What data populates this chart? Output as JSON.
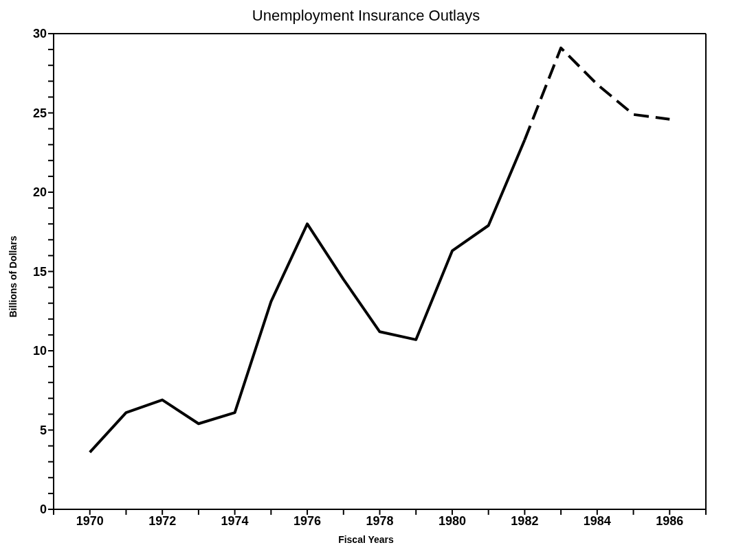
{
  "chart_data": {
    "type": "line",
    "title": "Unemployment Insurance Outlays",
    "xlabel": "Fiscal Years",
    "ylabel": "Billions of Dollars",
    "series": [
      {
        "color": "#000000",
        "line_style": "solid",
        "x": [
          1970,
          1971,
          1972,
          1973,
          1974,
          1975,
          1976,
          1977,
          1978,
          1979,
          1980,
          1981,
          1982
        ],
        "values": [
          3.6,
          6.1,
          6.9,
          5.4,
          6.1,
          13.1,
          18.0,
          14.5,
          11.2,
          10.7,
          16.3,
          17.9,
          23.3
        ]
      },
      {
        "color": "#000000",
        "line_style": "dashed",
        "x": [
          1982,
          1983,
          1984,
          1985,
          1986
        ],
        "values": [
          23.3,
          29.1,
          26.8,
          24.9,
          24.6
        ]
      }
    ],
    "xlim": [
      1969,
      1987
    ],
    "xticks": [
      {
        "value": 1969,
        "label": null
      },
      1970,
      {
        "value": 1971,
        "label": null
      },
      1972,
      {
        "value": 1973,
        "label": null
      },
      1974,
      {
        "value": 1975,
        "label": null
      },
      1976,
      {
        "value": 1977,
        "label": null
      },
      1978,
      {
        "value": 1979,
        "label": null
      },
      1980,
      {
        "value": 1981,
        "label": null
      },
      1982,
      {
        "value": 1983,
        "label": null
      },
      1984,
      {
        "value": 1985,
        "label": null
      },
      1986,
      {
        "value": 1987,
        "label": null
      }
    ],
    "ylim": [
      0,
      30
    ],
    "yticks": [
      0,
      {
        "value": 1,
        "label": null
      },
      {
        "value": 2,
        "label": null
      },
      {
        "value": 3,
        "label": null
      },
      {
        "value": 4,
        "label": null
      },
      5,
      {
        "value": 6,
        "label": null
      },
      {
        "value": 7,
        "label": null
      },
      {
        "value": 8,
        "label": null
      },
      {
        "value": 9,
        "label": null
      },
      10,
      {
        "value": 11,
        "label": null
      },
      {
        "value": 12,
        "label": null
      },
      {
        "value": 13,
        "label": null
      },
      {
        "value": 14,
        "label": null
      },
      15,
      {
        "value": 16,
        "label": null
      },
      {
        "value": 17,
        "label": null
      },
      {
        "value": 18,
        "label": null
      },
      {
        "value": 19,
        "label": null
      },
      20,
      {
        "value": 21,
        "label": null
      },
      {
        "value": 22,
        "label": null
      },
      {
        "value": 23,
        "label": null
      },
      {
        "value": 24,
        "label": null
      },
      25,
      {
        "value": 26,
        "label": null
      },
      {
        "value": 27,
        "label": null
      },
      {
        "value": 28,
        "label": null
      },
      {
        "value": 29,
        "label": null
      },
      30
    ],
    "grid": false,
    "marker": "none"
  }
}
